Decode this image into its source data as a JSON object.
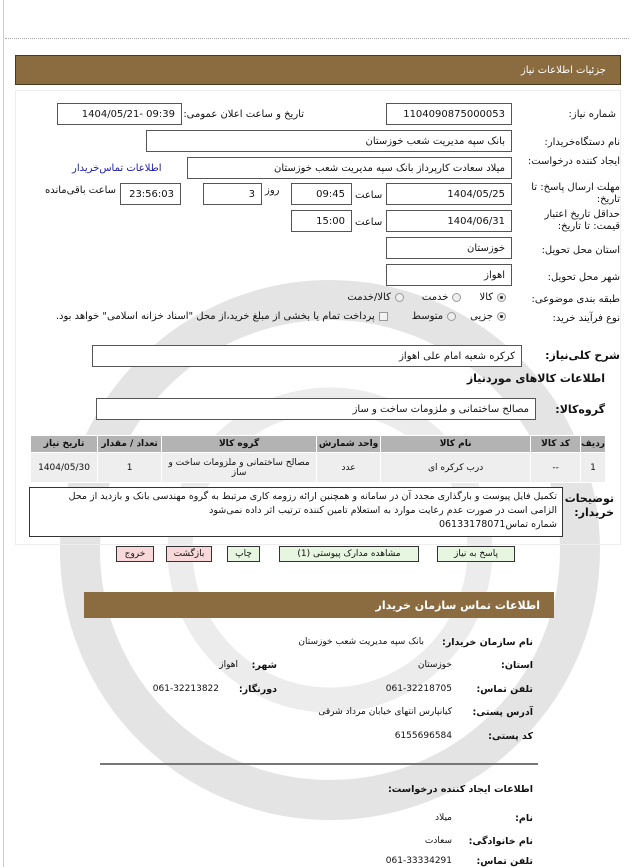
{
  "header": {
    "title": "جزئیات اطلاعات نیاز"
  },
  "form": {
    "need_number_label": "شماره نیاز:",
    "need_number": "1104090875000053",
    "announce_label": "تاریخ و ساعت اعلان عمومی:",
    "announce_value": "1404/05/21- 09:39",
    "buyer_label": "نام دستگاه‌خریدار:",
    "buyer_value": "بانک سپه مدیریت شعب خوزستان",
    "creator_label": "ایجاد کننده درخواست:",
    "creator_value": "میلاد سعادت کارپرداز بانک سپه مدیریت شعب خوزستان",
    "contact_link": "اطلاعات تماس‌خریدار",
    "deadline_label": "مهلت ارسال پاسخ: تا تاریخ:",
    "deadline_date": "1404/05/25",
    "time_label": "ساعت",
    "deadline_time": "09:45",
    "days": "3",
    "days_label": "روز",
    "remaining": "23:56:03",
    "remaining_label": "ساعت باقی‌مانده",
    "validity_label": "حداقل تاریخ اعتبار قیمت: تا تاریخ:",
    "validity_date": "1404/06/31",
    "validity_time": "15:00",
    "province_label": "استان محل تحویل:",
    "province_value": "خوزستان",
    "city_label": "شهر محل تحویل:",
    "city_value": "اهواز",
    "category_label": "طبقه بندی موضوعی:",
    "category_options": [
      "کالا",
      "خدمت",
      "کالا/خدمت"
    ],
    "category_selected": "کالا",
    "process_label": "نوع فرآیند خرید:",
    "process_options": [
      "جزیی",
      "متوسط"
    ],
    "process_selected": "جزیی",
    "payment_note": "پرداخت تمام یا بخشی از مبلغ خرید،از محل \"اسناد خزانه اسلامی\" خواهد بود.",
    "desc_label": "شرح کلی‌نیاز:",
    "desc_value": "کرکره شعبه امام علی اهواز",
    "goods_title": "اطلاعات کالاهای موردنیاز",
    "group_label": "گروه‌کالا:",
    "group_value": "مصالح ساختمانی و ملزومات ساخت و ساز"
  },
  "table": {
    "headers": [
      "ردیف",
      "کد کالا",
      "نام کالا",
      "واحد شمارش",
      "گروه کالا",
      "تعداد / مقدار",
      "تاریخ نیاز"
    ],
    "rows": [
      [
        "1",
        "--",
        "درب کرکره ای",
        "عدد",
        "مصالح ساختمانی و ملزومات ساخت و ساز",
        "1",
        "1404/05/30"
      ]
    ]
  },
  "notes": {
    "label": "توضیحات خریدار:",
    "line1": "تکمیل فایل پیوست و بارگذاری مجدد آن در سامانه و همچنین ارائه رزومه کاری مرتبط به گروه مهندسی بانک و بازدید از محل",
    "line2": "الزامی است در صورت عدم رعایت موارد به استعلام تامین کننده ترتیب اثر داده نمی‌شود",
    "line3": "شماره تماس06133178071"
  },
  "buttons": {
    "reply": "پاسخ به نیاز",
    "docs": "مشاهده مدارک پیوستی (1)",
    "print": "چاپ",
    "back": "بازگشت",
    "exit": "خروج"
  },
  "contact": {
    "title": "اطلاعات تماس سازمان خریدار",
    "org_label": "نام سازمان خریدار:",
    "org_value": "بانک سپه مدیریت شعب خوزستان",
    "province_label": "استان:",
    "province_value": "خوزستان",
    "city_label": "شهر:",
    "city_value": "اهواز",
    "phone_label": "تلفن تماس:",
    "phone_value": "061-32218705",
    "fax_label": "دورنگار:",
    "fax_value": "061-32213822",
    "address_label": "آدرس پستی:",
    "address_value": "کیانپارس انتهای خیابان مرداد شرقی",
    "postal_label": "کد پستی:",
    "postal_value": "6155696584",
    "creator_title": "اطلاعات ایجاد کننده درخواست:",
    "name_label": "نام:",
    "name_value": "میلاد",
    "family_label": "نام خانوادگی:",
    "family_value": "سعادت",
    "cphone_label": "تلفن تماس:",
    "cphone_value": "061-33334291"
  },
  "colors": {
    "header_bar": "#8b6c40",
    "link": "#1a1aa6",
    "green_button": "#e6f6e0",
    "red_button": "#f8d8d8"
  }
}
